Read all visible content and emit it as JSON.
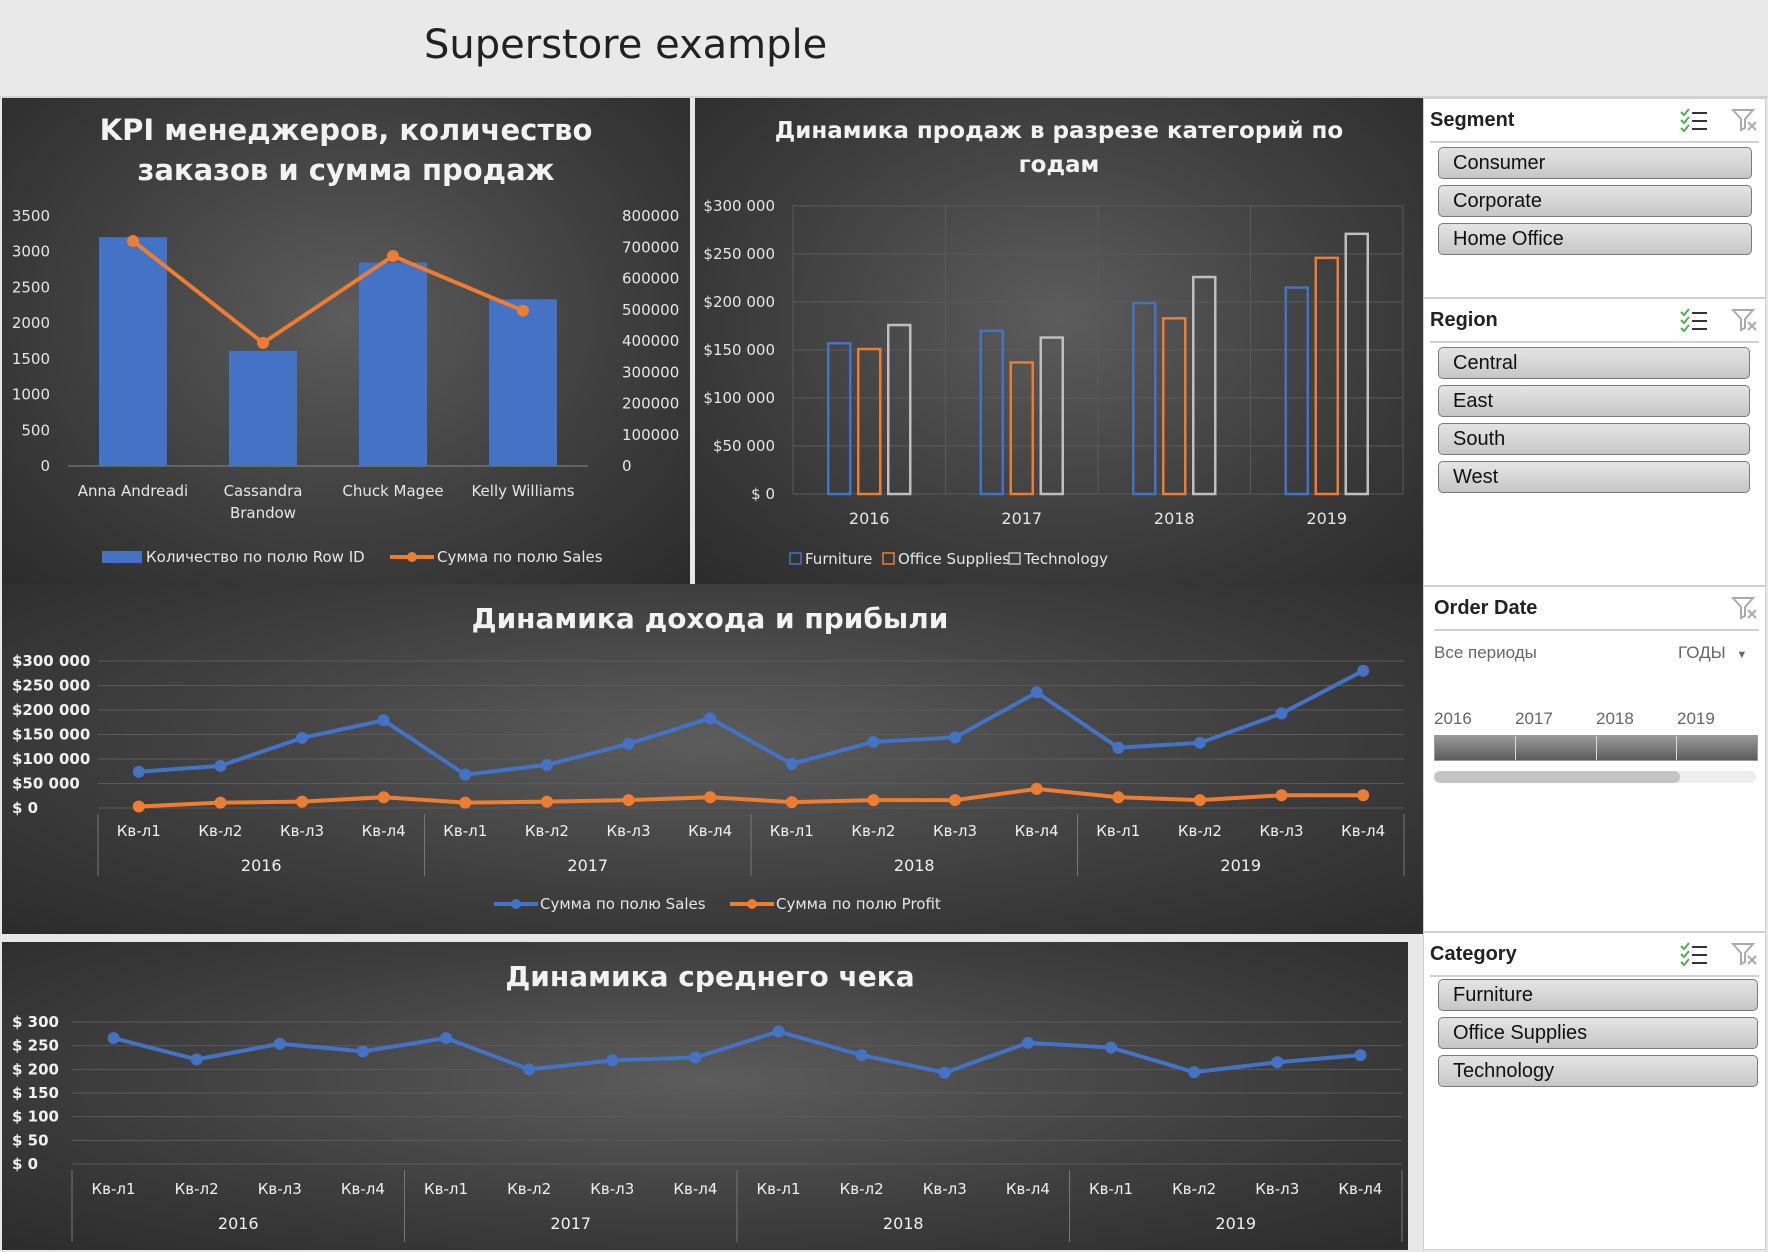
{
  "header": {
    "title": "Superstore example"
  },
  "colors": {
    "blue": "#4472C4",
    "orange": "#ED7D31",
    "gray": "#BFBFBF",
    "grid": "#5a5a5a",
    "text": "#e6e6e6"
  },
  "chart_data": [
    {
      "id": "kpi",
      "type": "bar",
      "title": "KPI менеджеров, количество заказов и сумма продаж",
      "title_lines": [
        "KPI менеджеров, количество",
        "заказов и сумма продаж"
      ],
      "categories": [
        "Anna Andreadi",
        "Cassandra Brandow",
        "Chuck Magee",
        "Kelly Williams"
      ],
      "category_lines": [
        [
          "Anna Andreadi"
        ],
        [
          "Cassandra",
          "Brandow"
        ],
        [
          "Chuck Magee"
        ],
        [
          "Kelly Williams"
        ]
      ],
      "series": [
        {
          "name": "Количество по полю Row ID",
          "type": "bar",
          "axis": "left",
          "values": [
            3203,
            1611,
            2848,
            2334
          ]
        },
        {
          "name": "Сумма по полю Sales",
          "type": "line",
          "axis": "right",
          "values": [
            720000,
            394000,
            672000,
            497000
          ]
        }
      ],
      "y_left": {
        "min": 0,
        "max": 3500,
        "ticks": [
          "0",
          "500",
          "1000",
          "1500",
          "2000",
          "2500",
          "3000",
          "3500"
        ]
      },
      "y_right": {
        "min": 0,
        "max": 800000,
        "ticks": [
          "0",
          "100000",
          "200000",
          "300000",
          "400000",
          "500000",
          "600000",
          "700000",
          "800000"
        ]
      },
      "legend": "bottom"
    },
    {
      "id": "category",
      "type": "bar",
      "title": "Динамика продаж в разрезе категорий по годам",
      "title_lines": [
        "Динамика продаж в разрезе категорий по",
        "годам"
      ],
      "categories": [
        "2016",
        "2017",
        "2018",
        "2019"
      ],
      "series": [
        {
          "name": "Furniture",
          "values": [
            157000,
            170000,
            199000,
            215000
          ]
        },
        {
          "name": "Office Supplies",
          "values": [
            151000,
            137000,
            183000,
            246000
          ]
        },
        {
          "name": "Technology",
          "values": [
            176000,
            163000,
            226000,
            271000
          ]
        }
      ],
      "y": {
        "min": 0,
        "max": 300000,
        "ticks": [
          "$ 0",
          "$50 000",
          "$100 000",
          "$150 000",
          "$200 000",
          "$250 000",
          "$300 000"
        ]
      },
      "grid": true,
      "legend": "bottom"
    },
    {
      "id": "revenue",
      "type": "line",
      "title": "Динамика дохода и прибыли",
      "quarters": [
        "Кв-л1",
        "Кв-л2",
        "Кв-л3",
        "Кв-л4"
      ],
      "years": [
        "2016",
        "2017",
        "2018",
        "2019"
      ],
      "series": [
        {
          "name": "Сумма по полю Sales",
          "values": [
            74000,
            86000,
            143000,
            179000,
            68000,
            88000,
            131000,
            183000,
            90000,
            135000,
            144000,
            236000,
            123000,
            133000,
            193000,
            280000
          ]
        },
        {
          "name": "Сумма по полю Profit",
          "values": [
            3000,
            11000,
            13000,
            22000,
            11000,
            13000,
            16000,
            22000,
            12000,
            16000,
            16000,
            39000,
            22000,
            16000,
            26000,
            26000
          ]
        }
      ],
      "y": {
        "min": 0,
        "max": 300000,
        "ticks": [
          "$ 0",
          "$50 000",
          "$100 000",
          "$150 000",
          "$200 000",
          "$250 000",
          "$300 000"
        ]
      },
      "grid": true,
      "legend": "bottom"
    },
    {
      "id": "avgcheck",
      "type": "line",
      "title": "Динамика среднего чека",
      "quarters": [
        "Кв-л1",
        "Кв-л2",
        "Кв-л3",
        "Кв-л4"
      ],
      "years": [
        "2016",
        "2017",
        "2018",
        "2019"
      ],
      "series": [
        {
          "values": [
            266,
            221,
            254,
            238,
            266,
            200,
            219,
            225,
            280,
            230,
            193,
            256,
            246,
            194,
            215,
            230
          ]
        }
      ],
      "y": {
        "min": 0,
        "max": 300,
        "ticks": [
          "$ 0",
          "$ 50",
          "$ 100",
          "$ 150",
          "$ 200",
          "$ 250",
          "$ 300"
        ]
      },
      "grid": true
    }
  ],
  "slicers": {
    "segment": {
      "title": "Segment",
      "items": [
        "Consumer",
        "Corporate",
        "Home Office"
      ]
    },
    "region": {
      "title": "Region",
      "items": [
        "Central",
        "East",
        "South",
        "West"
      ]
    },
    "order_date": {
      "title": "Order Date",
      "period_label": "Все периоды",
      "level_label": "ГОДЫ",
      "years": [
        "2016",
        "2017",
        "2018",
        "2019"
      ]
    },
    "category": {
      "title": "Category",
      "items": [
        "Furniture",
        "Office Supplies",
        "Technology"
      ]
    }
  }
}
